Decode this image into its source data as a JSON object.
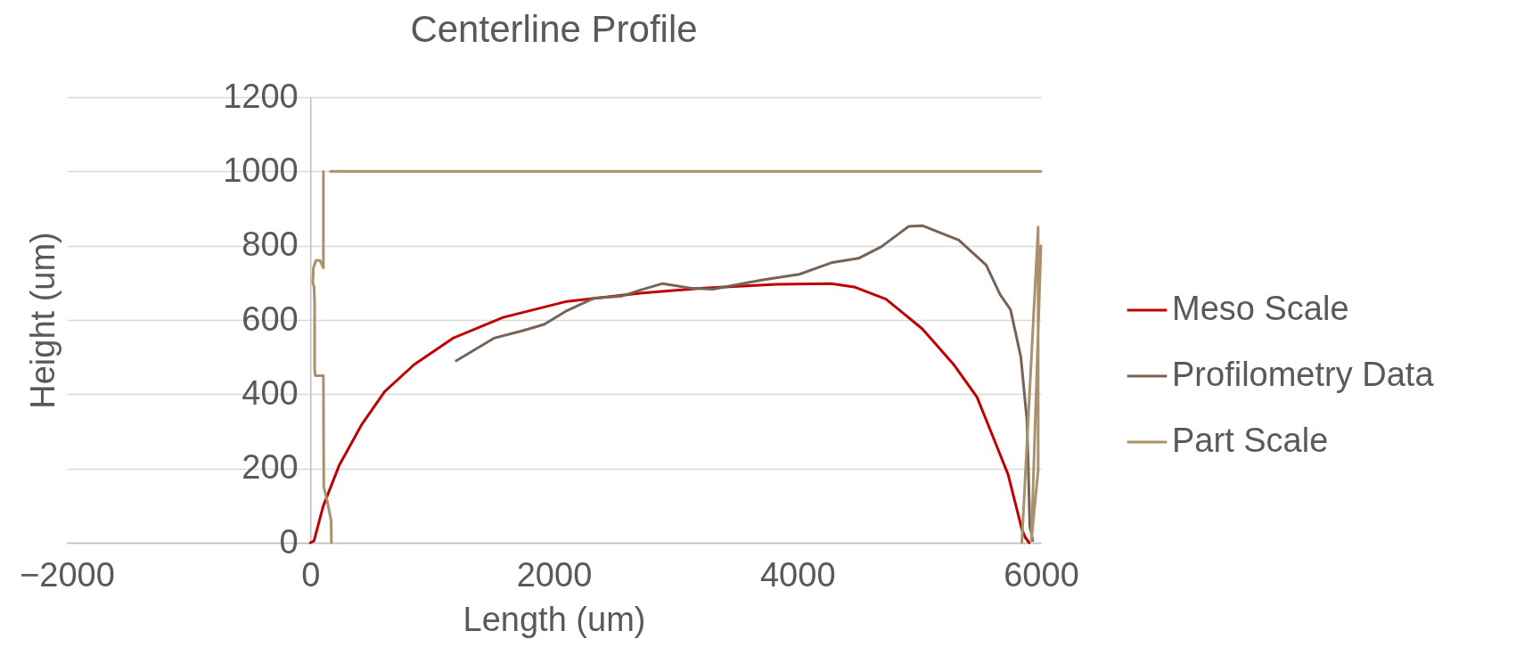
{
  "chart_data": {
    "type": "line",
    "title": "Centerline Profile",
    "xlabel": "Length (um)",
    "ylabel": "Height (um)",
    "xlim": [
      -2000,
      6000
    ],
    "xticks": [
      -2000,
      0,
      2000,
      4000,
      6000
    ],
    "ylim": [
      0,
      1200
    ],
    "yticks": [
      0,
      200,
      400,
      600,
      800,
      1000,
      1200
    ],
    "grid": "y",
    "legend": "right",
    "marker": "none",
    "line_style": "solid",
    "series": [
      {
        "name": "Meso Scale",
        "color": "#c00000",
        "x": [
          0,
          30,
          105,
          236,
          423,
          610,
          853,
          1171,
          1583,
          2107,
          2706,
          3230,
          3829,
          4278,
          4465,
          4727,
          5026,
          5288,
          5475,
          5625,
          5730,
          5843,
          5870,
          5903
        ],
        "values": [
          0,
          5,
          98,
          208,
          319,
          407,
          480,
          551,
          607,
          650,
          672,
          686,
          696,
          698,
          689,
          656,
          576,
          478,
          392,
          270,
          184,
          37,
          15,
          0
        ]
      },
      {
        "name": "Profilometry Data",
        "color": "#766358",
        "x": [
          1198,
          1508,
          1732,
          1920,
          2107,
          2332,
          2556,
          2706,
          2893,
          3118,
          3305,
          3716,
          4016,
          4278,
          4502,
          4689,
          4914,
          5026,
          5325,
          5550,
          5665,
          5750,
          5835,
          5884,
          5896,
          5908,
          5933
        ],
        "values": [
          490,
          551,
          570,
          588,
          625,
          659,
          664,
          680,
          698,
          686,
          683,
          708,
          723,
          754,
          766,
          797,
          852,
          854,
          815,
          748,
          668,
          628,
          500,
          333,
          206,
          46,
          6
        ]
      },
      {
        "name": "Part Scale",
        "color": "#a8916b",
        "x": [
          173,
          170,
          140,
          110,
          107,
          40,
          35,
          35,
          30,
          20,
          25,
          45,
          80,
          107,
          107,
          null,
          165,
          6000,
          null,
          5843,
          5977,
          5977,
          5921,
          6000
        ],
        "values": [
          0,
          60,
          110,
          150,
          450,
          450,
          470,
          650,
          690,
          700,
          740,
          760,
          760,
          740,
          1000,
          null,
          1000,
          1000,
          null,
          0,
          850,
          195,
          5,
          800
        ]
      }
    ]
  }
}
